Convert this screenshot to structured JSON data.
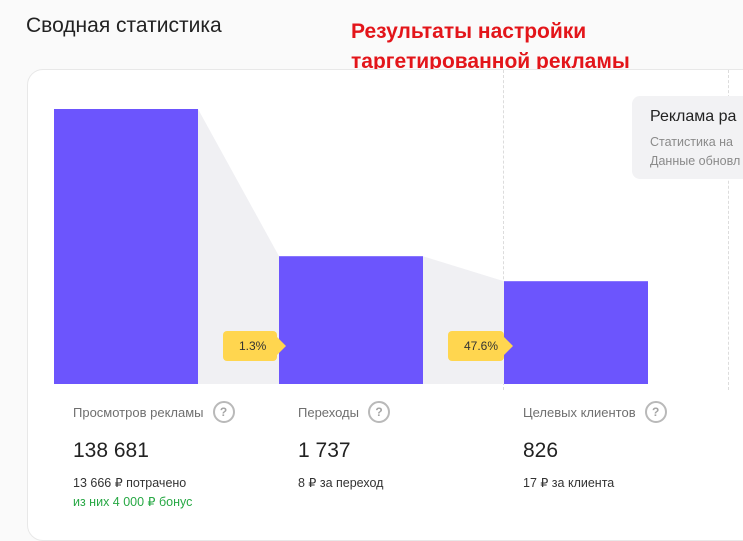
{
  "header": {
    "title": "Сводная статистика"
  },
  "annotation": {
    "line1": "Результаты настройки",
    "line2": "таргетированной рекламы"
  },
  "colors": {
    "bar": "#6c55fd",
    "connector": "#f0f0f3",
    "badge": "#ffd64f",
    "bonus": "#27a844",
    "annotation": "#e3151a"
  },
  "chart_data": {
    "type": "bar",
    "categories": [
      "Просмотров рекламы",
      "Переходы",
      "Целевых клиентов"
    ],
    "values": [
      138681,
      1737,
      826
    ],
    "conversions": [
      "1.3%",
      "47.6%"
    ]
  },
  "metrics": [
    {
      "label": "Просмотров рекламы",
      "help_icon": "question-circle-icon",
      "value": "138 681",
      "sub": "13 666 ₽ потрачено",
      "bonus": "из них 4 000 ₽ бонус"
    },
    {
      "label": "Переходы",
      "help_icon": "question-circle-icon",
      "value": "1 737",
      "sub": "8 ₽ за переход"
    },
    {
      "label": "Целевых клиентов",
      "help_icon": "question-circle-icon",
      "value": "826",
      "sub": "17 ₽ за клиента"
    }
  ],
  "info_box": {
    "title": "Реклама ра",
    "line1": "Статистика на",
    "line2": "Данные обновл"
  }
}
